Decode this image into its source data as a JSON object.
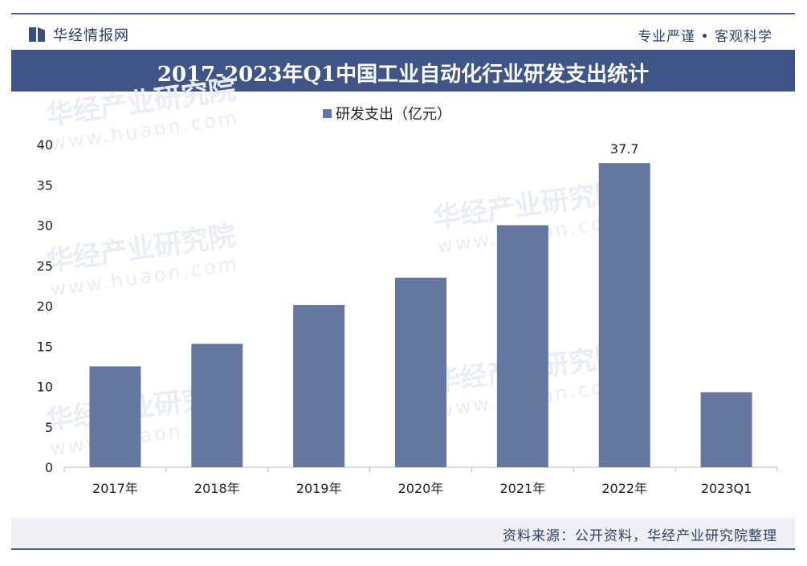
{
  "header": {
    "logo_text": "华经情报网",
    "slogan": "专业严谨 • 客观科学"
  },
  "watermark": {
    "text": "华经产业研究院",
    "url": "www.huaon.com"
  },
  "footer": {
    "source": "资料来源：公开资料，华经产业研究院整理"
  },
  "colors": {
    "bar": "#6577a0",
    "title_bar": "#3f5587",
    "accent": "#4a5f8f"
  },
  "chart_data": {
    "type": "bar",
    "title": "2017-2023年Q1中国工业自动化行业研发支出统计",
    "legend_position": "top-center",
    "categories": [
      "2017年",
      "2018年",
      "2019年",
      "2020年",
      "2021年",
      "2022年",
      "2023Q1"
    ],
    "series": [
      {
        "name": "研发支出（亿元）",
        "values": [
          12.5,
          15.3,
          20.1,
          23.5,
          30.0,
          37.7,
          9.3
        ],
        "data_labels": [
          "",
          "",
          "",
          "",
          "",
          "37.7",
          ""
        ]
      }
    ],
    "ylim": [
      0,
      40
    ],
    "yticks": [
      0,
      5,
      10,
      15,
      20,
      25,
      30,
      35,
      40
    ],
    "grid": false
  }
}
